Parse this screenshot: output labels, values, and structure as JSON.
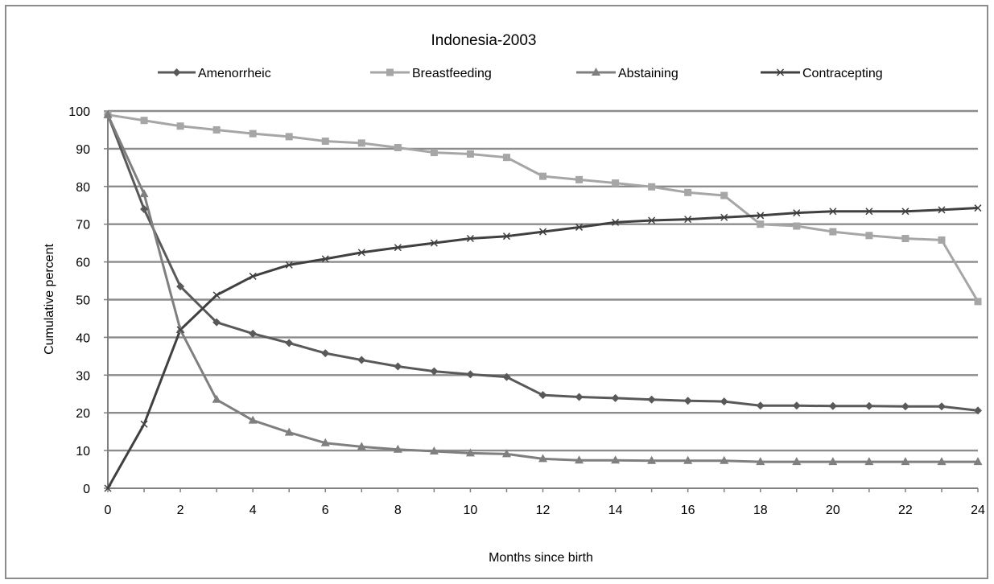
{
  "chart_data": {
    "type": "line",
    "title": "Indonesia-2003",
    "xlabel": "Months since birth",
    "ylabel": "Cumulative percent",
    "xlim": [
      0,
      24
    ],
    "ylim": [
      0,
      100
    ],
    "xticks": [
      0,
      2,
      4,
      6,
      8,
      10,
      12,
      14,
      16,
      18,
      20,
      22,
      24
    ],
    "yticks": [
      0,
      10,
      20,
      30,
      40,
      50,
      60,
      70,
      80,
      90,
      100
    ],
    "grid": "horizontal",
    "legend_position": "top",
    "x": [
      0,
      1,
      2,
      3,
      4,
      5,
      6,
      7,
      8,
      9,
      10,
      11,
      12,
      13,
      14,
      15,
      16,
      17,
      18,
      19,
      20,
      21,
      22,
      23,
      24
    ],
    "series": [
      {
        "name": "Amenorrheic",
        "marker": "diamond",
        "color": "#595959",
        "values": [
          99,
          74,
          53.5,
          44,
          41,
          38.5,
          35.8,
          34,
          32.3,
          31,
          30.2,
          29.5,
          24.7,
          24.2,
          23.9,
          23.5,
          23.2,
          23,
          21.9,
          21.9,
          21.8,
          21.8,
          21.7,
          21.7,
          20.6
        ]
      },
      {
        "name": "Breastfeeding",
        "marker": "square",
        "color": "#a6a6a6",
        "values": [
          99,
          97.5,
          96,
          95,
          94,
          93.2,
          92,
          91.5,
          90.3,
          89,
          88.6,
          87.7,
          82.7,
          81.8,
          80.9,
          79.9,
          78.4,
          77.6,
          70,
          69.5,
          68,
          67,
          66.2,
          65.8,
          49.5
        ]
      },
      {
        "name": "Abstaining",
        "marker": "triangle",
        "color": "#7f7f7f",
        "values": [
          99,
          78,
          42,
          23.5,
          18,
          14.8,
          12,
          11,
          10.3,
          9.8,
          9.3,
          9.1,
          7.8,
          7.4,
          7.4,
          7.3,
          7.3,
          7.3,
          7,
          7,
          7,
          7,
          7,
          7,
          7
        ]
      },
      {
        "name": "Contracepting",
        "marker": "x",
        "color": "#404040",
        "values": [
          0,
          17,
          42,
          51.2,
          56.2,
          59.2,
          60.8,
          62.5,
          63.8,
          65,
          66.2,
          66.8,
          68,
          69.2,
          70.5,
          71,
          71.3,
          71.8,
          72.3,
          73,
          73.4,
          73.4,
          73.4,
          73.8,
          74.3
        ]
      }
    ]
  }
}
